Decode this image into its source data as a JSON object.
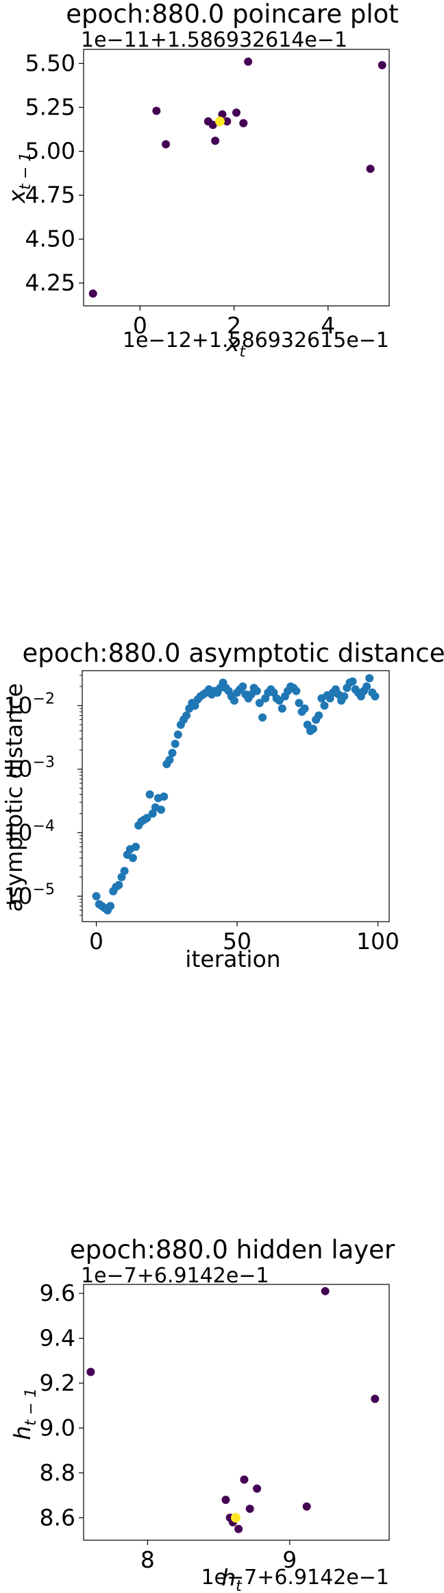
{
  "chart_data": [
    {
      "type": "scatter",
      "title": "epoch:880.0 poincare plot",
      "xlabel": "x_t",
      "ylabel": "x_{t-1}",
      "x_offset_text": "1e−12+1.586932615e−1",
      "y_offset_text": "1e−11+1.586932614e−1",
      "x_ticks": [
        "0",
        "2",
        "4"
      ],
      "y_ticks": [
        "4.25",
        "4.50",
        "4.75",
        "5.00",
        "5.25",
        "5.50"
      ],
      "xlim": [
        -1.2,
        5.3
      ],
      "ylim": [
        4.12,
        5.58
      ],
      "grid": false,
      "colors": {
        "points": "#440154",
        "highlight": "#fde725"
      },
      "points": [
        {
          "x": -1.0,
          "y": 4.19
        },
        {
          "x": 0.35,
          "y": 5.23
        },
        {
          "x": 0.55,
          "y": 5.04
        },
        {
          "x": 1.45,
          "y": 5.17
        },
        {
          "x": 1.55,
          "y": 5.15
        },
        {
          "x": 1.6,
          "y": 5.06
        },
        {
          "x": 1.75,
          "y": 5.21
        },
        {
          "x": 1.85,
          "y": 5.17
        },
        {
          "x": 2.05,
          "y": 5.22
        },
        {
          "x": 2.2,
          "y": 5.16
        },
        {
          "x": 2.3,
          "y": 5.51
        },
        {
          "x": 4.9,
          "y": 4.9
        },
        {
          "x": 5.15,
          "y": 5.49
        }
      ],
      "highlight": {
        "x": 1.7,
        "y": 5.17
      }
    },
    {
      "type": "scatter",
      "title": "epoch:880.0 asymptotic distance",
      "xlabel": "iteration",
      "ylabel": "asymptotic distance",
      "y_scale": "log",
      "x_ticks": [
        "0",
        "50",
        "100"
      ],
      "y_ticks": [
        "10",
        "10",
        "10",
        "10"
      ],
      "y_tick_exponents": [
        "−5",
        "−4",
        "−3",
        "−2"
      ],
      "xlim": [
        -5,
        104
      ],
      "ylim_log10": [
        -5.4,
        -1.45
      ],
      "grid": false,
      "colors": {
        "points": "#1f77b4"
      },
      "x": [
        0,
        1,
        2,
        3,
        4,
        5,
        6,
        7,
        8,
        9,
        10,
        11,
        12,
        13,
        14,
        15,
        16,
        17,
        18,
        19,
        20,
        21,
        22,
        23,
        24,
        25,
        26,
        27,
        28,
        29,
        30,
        31,
        32,
        33,
        34,
        35,
        36,
        37,
        38,
        39,
        40,
        41,
        42,
        43,
        44,
        45,
        46,
        47,
        48,
        49,
        50,
        51,
        52,
        53,
        54,
        55,
        56,
        57,
        58,
        59,
        60,
        61,
        62,
        63,
        64,
        65,
        66,
        67,
        68,
        69,
        70,
        71,
        72,
        73,
        74,
        75,
        76,
        77,
        78,
        79,
        80,
        81,
        82,
        83,
        84,
        85,
        86,
        87,
        88,
        89,
        90,
        91,
        92,
        93,
        94,
        95,
        96,
        97,
        98,
        99
      ],
      "y": [
        1e-05,
        7.5e-06,
        7e-06,
        6.5e-06,
        6e-06,
        7e-06,
        1.2e-05,
        1.4e-05,
        1.5e-05,
        2e-05,
        2.5e-05,
        4.5e-05,
        5.5e-05,
        4e-05,
        6e-05,
        0.00013,
        0.00015,
        0.00016,
        0.00017,
        0.0004,
        0.0002,
        0.00025,
        0.00035,
        0.00023,
        0.00037,
        0.0012,
        0.0014,
        0.0018,
        0.0025,
        0.0035,
        0.005,
        0.006,
        0.007,
        0.009,
        0.011,
        0.01,
        0.0125,
        0.014,
        0.015,
        0.016,
        0.018,
        0.015,
        0.017,
        0.016,
        0.019,
        0.023,
        0.019,
        0.017,
        0.014,
        0.012,
        0.016,
        0.018,
        0.02,
        0.015,
        0.013,
        0.015,
        0.019,
        0.017,
        0.011,
        0.0065,
        0.013,
        0.016,
        0.018,
        0.016,
        0.013,
        0.012,
        0.009,
        0.014,
        0.017,
        0.02,
        0.019,
        0.017,
        0.011,
        0.008,
        0.009,
        0.005,
        0.004,
        0.0043,
        0.006,
        0.007,
        0.013,
        0.01,
        0.0145,
        0.013,
        0.016,
        0.018,
        0.015,
        0.012,
        0.014,
        0.019,
        0.023,
        0.024,
        0.018,
        0.016,
        0.014,
        0.017,
        0.02,
        0.027,
        0.016,
        0.014
      ]
    },
    {
      "type": "scatter",
      "title": "epoch:880.0 hidden layer",
      "xlabel": "h_t",
      "ylabel": "h_{t-1}",
      "x_offset_text": "1e−7+6.9142e−1",
      "y_offset_text": "1e−7+6.9142e−1",
      "x_ticks": [
        "8",
        "9"
      ],
      "y_ticks": [
        "8.6",
        "8.8",
        "9.0",
        "9.2",
        "9.4",
        "9.6"
      ],
      "xlim": [
        7.55,
        9.7
      ],
      "ylim": [
        8.5,
        9.64
      ],
      "grid": false,
      "colors": {
        "points": "#440154",
        "highlight": "#fde725"
      },
      "points": [
        {
          "x": 7.6,
          "y": 9.25
        },
        {
          "x": 8.55,
          "y": 8.68
        },
        {
          "x": 8.58,
          "y": 8.6
        },
        {
          "x": 8.6,
          "y": 8.58
        },
        {
          "x": 8.64,
          "y": 8.55
        },
        {
          "x": 8.68,
          "y": 8.77
        },
        {
          "x": 8.72,
          "y": 8.64
        },
        {
          "x": 8.77,
          "y": 8.73
        },
        {
          "x": 9.12,
          "y": 8.65
        },
        {
          "x": 9.25,
          "y": 9.61
        },
        {
          "x": 9.6,
          "y": 9.13
        }
      ],
      "highlight": {
        "x": 8.62,
        "y": 8.6
      }
    }
  ]
}
